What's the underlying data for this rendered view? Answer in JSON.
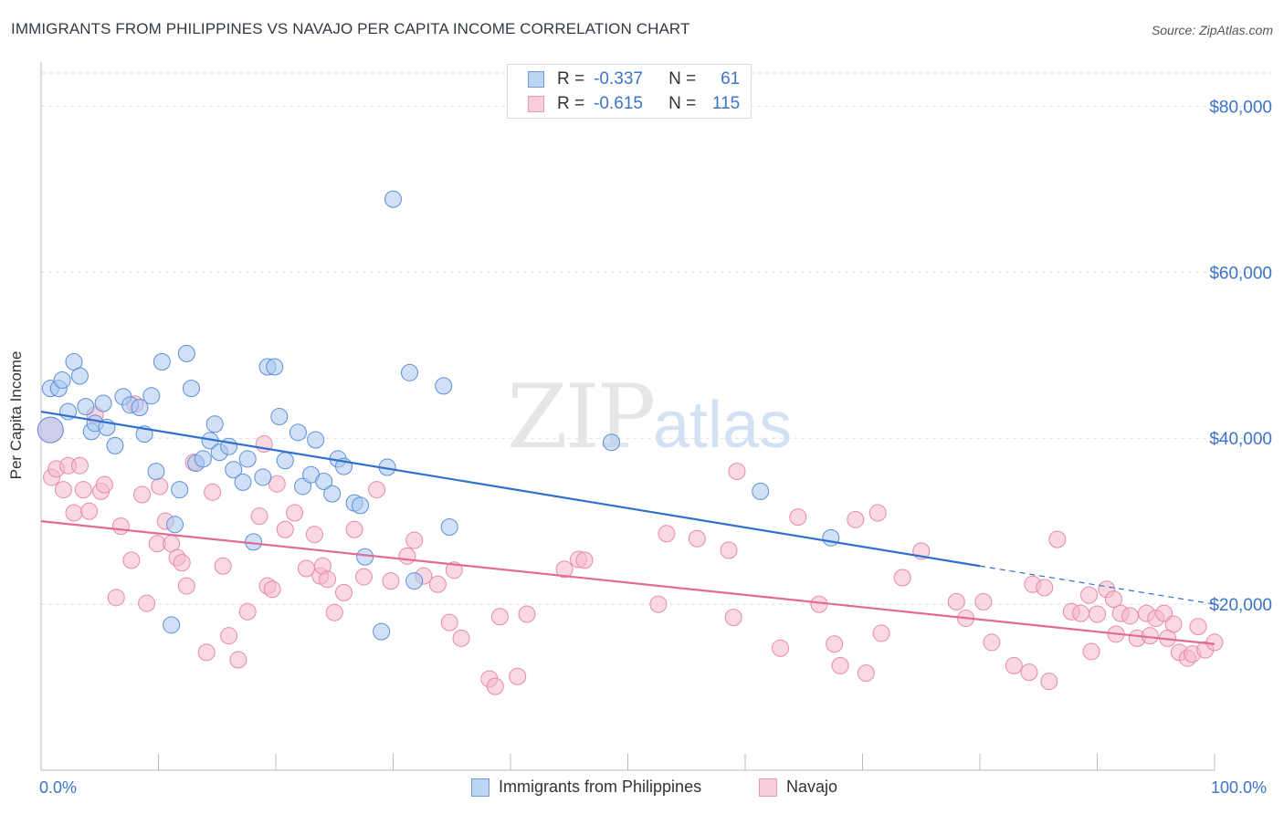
{
  "title": "IMMIGRANTS FROM PHILIPPINES VS NAVAJO PER CAPITA INCOME CORRELATION CHART",
  "source": "Source: ZipAtlas.com",
  "watermark": {
    "zip": "ZIP",
    "atlas": "atlas"
  },
  "legend_top": {
    "rows": [
      {
        "r_label": "R =",
        "r_value": "-0.337",
        "n_label": "N =",
        "n_value": "61"
      },
      {
        "r_label": "R =",
        "r_value": "-0.615",
        "n_label": "N =",
        "n_value": "115"
      }
    ]
  },
  "colors": {
    "blue_fill": "#a9c8f0",
    "blue_stroke": "#5d8fd6",
    "blue_line": "#2f6fd0",
    "pink_fill": "#f5b8cb",
    "pink_stroke": "#e68aa8",
    "pink_line": "#e26b96",
    "accent_text": "#3b73c8",
    "grid": "#dddddd"
  },
  "chart_data": {
    "type": "scatter",
    "title": "IMMIGRANTS FROM PHILIPPINES VS NAVAJO PER CAPITA INCOME CORRELATION CHART",
    "xlabel": "",
    "ylabel": "Per Capita Income",
    "xlim": [
      0,
      100
    ],
    "ylim": [
      0,
      84000
    ],
    "x_tick_labels": [
      "0.0%",
      "100.0%"
    ],
    "y_ticks": [
      20000,
      40000,
      60000,
      80000
    ],
    "y_tick_labels": [
      "$20,000",
      "$40,000",
      "$60,000",
      "$80,000"
    ],
    "grid": true,
    "legend_placement": "top-center and bottom",
    "series": [
      {
        "name": "Immigrants from Philippines",
        "color": "#a9c8f0",
        "trend": {
          "x1": 0,
          "y1": 43200,
          "x2": 80,
          "y2": 24600,
          "dashed_to_x": 100,
          "dashed_to_y": 20000
        },
        "points": [
          [
            0.8,
            41000
          ],
          [
            0.8,
            46000
          ],
          [
            1.5,
            46000
          ],
          [
            1.8,
            47000
          ],
          [
            2.3,
            43200
          ],
          [
            2.8,
            49200
          ],
          [
            3.3,
            47500
          ],
          [
            3.8,
            43800
          ],
          [
            4.3,
            40800
          ],
          [
            4.6,
            41800
          ],
          [
            5.3,
            44200
          ],
          [
            5.6,
            41300
          ],
          [
            6.3,
            39100
          ],
          [
            7.0,
            45000
          ],
          [
            7.6,
            44000
          ],
          [
            8.4,
            43700
          ],
          [
            8.8,
            40500
          ],
          [
            9.4,
            45100
          ],
          [
            9.8,
            36000
          ],
          [
            10.3,
            49200
          ],
          [
            11.1,
            17500
          ],
          [
            11.4,
            29600
          ],
          [
            11.8,
            33800
          ],
          [
            12.4,
            50200
          ],
          [
            12.8,
            46000
          ],
          [
            13.2,
            37000
          ],
          [
            13.8,
            37500
          ],
          [
            14.4,
            39700
          ],
          [
            14.8,
            41700
          ],
          [
            15.2,
            38300
          ],
          [
            16.0,
            39000
          ],
          [
            16.4,
            36200
          ],
          [
            17.2,
            34700
          ],
          [
            17.6,
            37500
          ],
          [
            18.1,
            27500
          ],
          [
            18.9,
            35300
          ],
          [
            19.3,
            48600
          ],
          [
            19.9,
            48600
          ],
          [
            20.3,
            42600
          ],
          [
            20.8,
            37300
          ],
          [
            21.9,
            40700
          ],
          [
            22.3,
            34200
          ],
          [
            23.0,
            35600
          ],
          [
            23.4,
            39800
          ],
          [
            24.1,
            34800
          ],
          [
            24.8,
            33300
          ],
          [
            25.3,
            37500
          ],
          [
            25.8,
            36600
          ],
          [
            26.7,
            32200
          ],
          [
            27.2,
            31900
          ],
          [
            27.6,
            25700
          ],
          [
            29.0,
            16700
          ],
          [
            29.5,
            36500
          ],
          [
            30.0,
            68800
          ],
          [
            31.4,
            47900
          ],
          [
            31.8,
            22800
          ],
          [
            34.3,
            46300
          ],
          [
            34.8,
            29300
          ],
          [
            48.6,
            39500
          ],
          [
            61.3,
            33600
          ],
          [
            67.3,
            28000
          ]
        ]
      },
      {
        "name": "Navajo",
        "color": "#f5b8cb",
        "trend": {
          "x1": 0,
          "y1": 30000,
          "x2": 100,
          "y2": 15200
        },
        "points": [
          [
            0.8,
            41000
          ],
          [
            0.9,
            35300
          ],
          [
            1.3,
            36300
          ],
          [
            1.9,
            33800
          ],
          [
            2.3,
            36700
          ],
          [
            2.8,
            31000
          ],
          [
            3.3,
            36700
          ],
          [
            3.6,
            33800
          ],
          [
            4.1,
            31200
          ],
          [
            4.6,
            42800
          ],
          [
            5.1,
            33600
          ],
          [
            5.4,
            34400
          ],
          [
            6.4,
            20800
          ],
          [
            6.8,
            29400
          ],
          [
            7.7,
            25300
          ],
          [
            8.0,
            44100
          ],
          [
            8.6,
            33200
          ],
          [
            9.0,
            20100
          ],
          [
            9.9,
            27300
          ],
          [
            10.1,
            34200
          ],
          [
            10.6,
            30000
          ],
          [
            11.1,
            27300
          ],
          [
            11.6,
            25600
          ],
          [
            12.0,
            25000
          ],
          [
            12.4,
            22200
          ],
          [
            13.0,
            37100
          ],
          [
            14.1,
            14200
          ],
          [
            14.6,
            33500
          ],
          [
            15.5,
            24600
          ],
          [
            16.0,
            16200
          ],
          [
            16.8,
            13300
          ],
          [
            17.6,
            19100
          ],
          [
            18.6,
            30600
          ],
          [
            19.0,
            39300
          ],
          [
            19.3,
            22200
          ],
          [
            19.7,
            21800
          ],
          [
            20.1,
            34500
          ],
          [
            20.8,
            29000
          ],
          [
            21.6,
            31000
          ],
          [
            22.6,
            24300
          ],
          [
            23.3,
            28400
          ],
          [
            23.8,
            23400
          ],
          [
            24.0,
            24600
          ],
          [
            24.4,
            23000
          ],
          [
            25.0,
            19000
          ],
          [
            25.8,
            21400
          ],
          [
            26.7,
            29000
          ],
          [
            27.5,
            23300
          ],
          [
            28.6,
            33800
          ],
          [
            29.8,
            22800
          ],
          [
            31.2,
            25800
          ],
          [
            31.8,
            27700
          ],
          [
            32.6,
            23400
          ],
          [
            33.8,
            22400
          ],
          [
            34.8,
            17800
          ],
          [
            35.2,
            24100
          ],
          [
            35.8,
            15900
          ],
          [
            38.2,
            11000
          ],
          [
            38.7,
            10100
          ],
          [
            39.1,
            18500
          ],
          [
            40.6,
            11300
          ],
          [
            41.4,
            18800
          ],
          [
            44.6,
            24200
          ],
          [
            45.8,
            25400
          ],
          [
            46.3,
            25300
          ],
          [
            52.6,
            20000
          ],
          [
            53.3,
            28500
          ],
          [
            55.9,
            27900
          ],
          [
            58.6,
            26500
          ],
          [
            59.0,
            18400
          ],
          [
            59.3,
            36000
          ],
          [
            63.0,
            14700
          ],
          [
            64.5,
            30500
          ],
          [
            66.3,
            20000
          ],
          [
            67.6,
            15200
          ],
          [
            68.1,
            12600
          ],
          [
            69.4,
            30200
          ],
          [
            70.3,
            11700
          ],
          [
            71.3,
            31000
          ],
          [
            71.6,
            16500
          ],
          [
            73.4,
            23200
          ],
          [
            75.0,
            26400
          ],
          [
            78.0,
            20300
          ],
          [
            78.8,
            18300
          ],
          [
            80.3,
            20300
          ],
          [
            81.0,
            15400
          ],
          [
            82.9,
            12600
          ],
          [
            84.2,
            11800
          ],
          [
            84.5,
            22400
          ],
          [
            85.5,
            22000
          ],
          [
            85.9,
            10700
          ],
          [
            86.6,
            27800
          ],
          [
            87.8,
            19100
          ],
          [
            88.6,
            18900
          ],
          [
            89.3,
            21100
          ],
          [
            89.5,
            14300
          ],
          [
            90.0,
            18800
          ],
          [
            90.8,
            21800
          ],
          [
            91.4,
            20600
          ],
          [
            91.6,
            16400
          ],
          [
            92.0,
            18900
          ],
          [
            92.8,
            18600
          ],
          [
            93.4,
            15900
          ],
          [
            94.2,
            18900
          ],
          [
            94.5,
            16200
          ],
          [
            95.0,
            18300
          ],
          [
            95.7,
            18900
          ],
          [
            96.0,
            15900
          ],
          [
            96.5,
            17600
          ],
          [
            97.0,
            14200
          ],
          [
            97.7,
            13500
          ],
          [
            98.1,
            14000
          ],
          [
            98.6,
            17300
          ],
          [
            99.2,
            14500
          ],
          [
            100.0,
            15400
          ]
        ]
      }
    ]
  }
}
